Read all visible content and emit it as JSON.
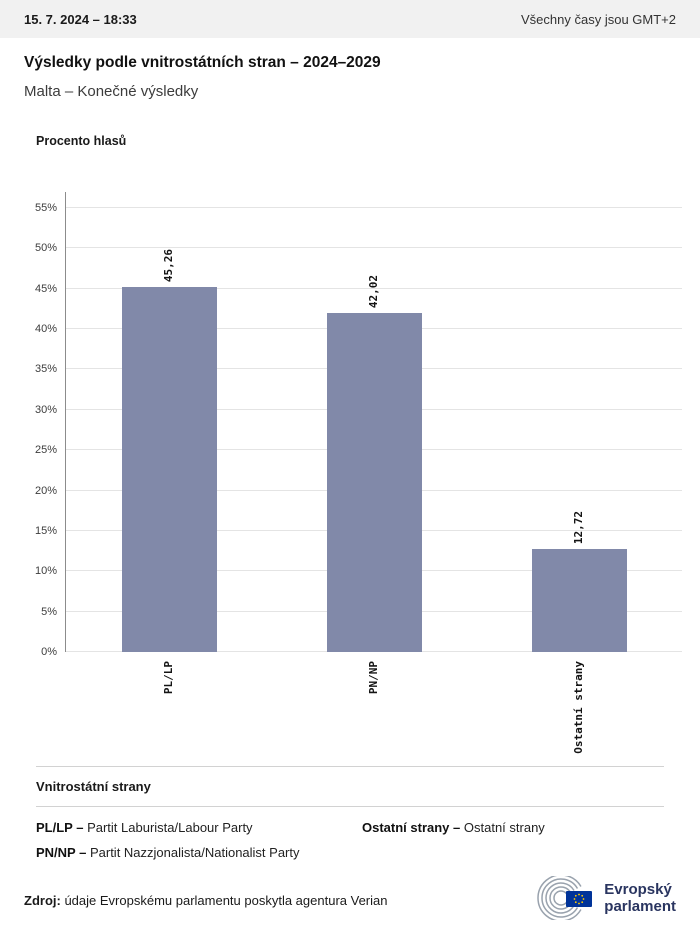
{
  "header": {
    "datetime": "15. 7. 2024 – 18:33",
    "timezone_note": "Všechny časy jsou GMT+2"
  },
  "title": "Výsledky podle vnitrostátních stran – 2024–2029",
  "subtitle": "Malta – Konečné výsledky",
  "chart_data": {
    "type": "bar",
    "title": "Procento hlasů",
    "categories": [
      "PL/LP",
      "PN/NP",
      "Ostatní strany"
    ],
    "values": [
      45.26,
      42.02,
      12.72
    ],
    "value_labels": [
      "45,26",
      "42,02",
      "12,72"
    ],
    "ylim": [
      0,
      55
    ],
    "ytick_step": 5,
    "ytick_suffix": "%",
    "bar_color": "#8189a9",
    "grid": true,
    "legend_position": "none"
  },
  "legend": {
    "heading": "Vnitrostátní strany",
    "entries": [
      {
        "abbr": "PL/LP –",
        "name": "Partit Laburista/Labour Party"
      },
      {
        "abbr": "PN/NP –",
        "name": "Partit Nazzjonalista/Nationalist Party"
      },
      {
        "abbr": "Ostatní strany –",
        "name": "Ostatní strany"
      }
    ]
  },
  "source": {
    "label": "Zdroj:",
    "text": "údaje Evropskému parlamentu poskytla agentura Verian"
  },
  "logo": {
    "line1": "Evropský",
    "line2": "parlament"
  },
  "colors": {
    "bar": "#8189a9",
    "topbar_bg": "#f1f1f1",
    "flag_blue": "#003399",
    "flag_star": "#ffcc00"
  }
}
